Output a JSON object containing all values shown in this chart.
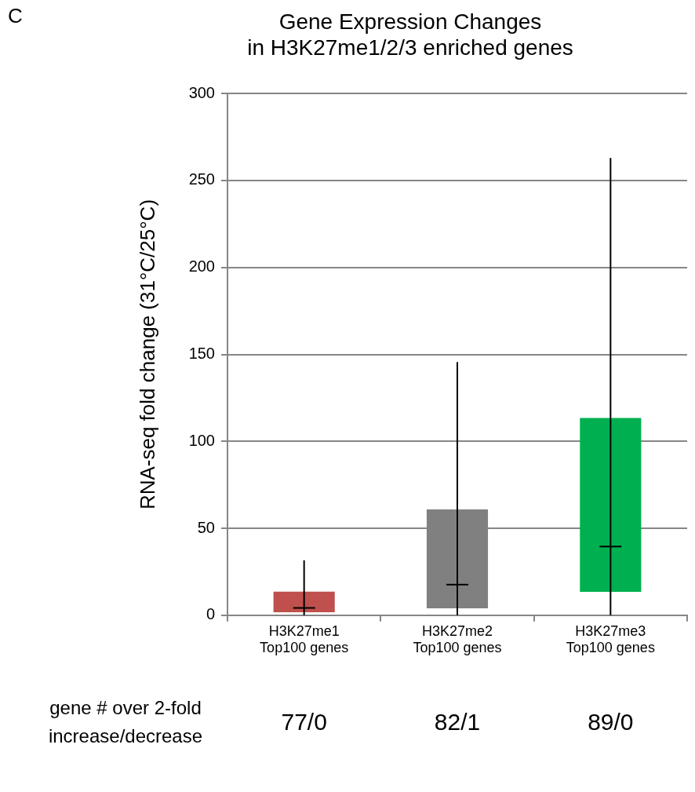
{
  "chart_data": {
    "type": "box",
    "title": "Gene Expression Changes\nin H3K27me1/2/3 enriched genes",
    "ylabel": "RNA-seq fold change (31°C/25°C)",
    "categories": [
      "H3K27me1\nTop100 genes",
      "H3K27me2\nTop100 genes",
      "H3K27me3\nTop100 genes"
    ],
    "colors": [
      "#c0504d",
      "#808080",
      "#00b050"
    ],
    "boxes": [
      {
        "low": 0,
        "q1": 1.7,
        "median": 4.2,
        "q3": 13.6,
        "high": 31.6
      },
      {
        "low": 0,
        "q1": 4,
        "median": 17.6,
        "q3": 60.8,
        "high": 145.6
      },
      {
        "low": 0,
        "q1": 13.4,
        "median": 39.5,
        "q3": 113.4,
        "high": 263
      }
    ],
    "ylim": [
      0,
      300
    ],
    "yticks": [
      0,
      50,
      100,
      150,
      200,
      250,
      300
    ],
    "grid": "y",
    "annotations": [
      "C",
      "gene # over 2-fold\nincrease/decrease",
      "77/0",
      "82/1",
      "89/0"
    ]
  }
}
